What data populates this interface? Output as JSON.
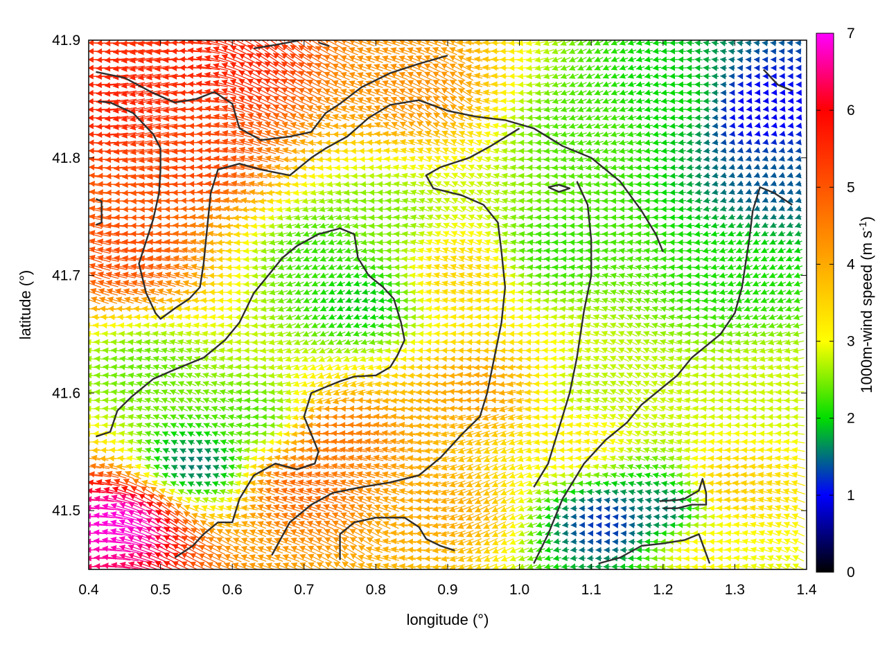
{
  "chart_data": {
    "type": "vector-field",
    "xlabel": "longitude (°)",
    "ylabel": "latitude (°)",
    "colorbar_label": "1000m-wind speed (m s",
    "colorbar_label_sup": "-1",
    "colorbar_label_close": ")",
    "xlim": [
      0.4,
      1.4
    ],
    "ylim": [
      41.45,
      41.9
    ],
    "x_ticks": [
      0.4,
      0.5,
      0.6,
      0.7,
      0.8,
      0.9,
      1.0,
      1.1,
      1.2,
      1.3,
      1.4
    ],
    "x_tick_labels": [
      "0.4",
      "0.5",
      "0.6",
      "0.7",
      "0.8",
      "0.9",
      "1.0",
      "1.1",
      "1.2",
      "1.3",
      "1.4"
    ],
    "y_ticks": [
      41.5,
      41.6,
      41.7,
      41.8,
      41.9
    ],
    "y_tick_labels": [
      "41.5",
      "41.6",
      "41.7",
      "41.8",
      "41.9"
    ],
    "colorbar_range": [
      0,
      7
    ],
    "colorbar_ticks": [
      0,
      1,
      2,
      3,
      4,
      5,
      6,
      7
    ],
    "colorbar_tick_labels": [
      "0",
      "1",
      "2",
      "3",
      "4",
      "5",
      "6",
      "7"
    ],
    "colormap": [
      {
        "v": 0,
        "c": "#000000"
      },
      {
        "v": 1,
        "c": "#0000ff"
      },
      {
        "v": 2,
        "c": "#00dd00"
      },
      {
        "v": 3,
        "c": "#ffff00"
      },
      {
        "v": 4,
        "c": "#ffaa00"
      },
      {
        "v": 5,
        "c": "#ff5500"
      },
      {
        "v": 6,
        "c": "#ff0000"
      },
      {
        "v": 7,
        "c": "#ff00ff"
      }
    ],
    "wind_speed_centers": [
      {
        "lon": 0.45,
        "lat": 41.85,
        "speed": 5.6
      },
      {
        "lon": 0.6,
        "lat": 41.88,
        "speed": 5.6
      },
      {
        "lon": 0.45,
        "lat": 41.72,
        "speed": 5.1
      },
      {
        "lon": 0.55,
        "lat": 41.8,
        "speed": 5.2
      },
      {
        "lon": 0.85,
        "lat": 41.86,
        "speed": 4.3
      },
      {
        "lon": 0.45,
        "lat": 41.49,
        "speed": 6.9
      },
      {
        "lon": 0.48,
        "lat": 41.62,
        "speed": 2.4
      },
      {
        "lon": 0.55,
        "lat": 41.54,
        "speed": 1.5
      },
      {
        "lon": 0.63,
        "lat": 41.58,
        "speed": 2.3
      },
      {
        "lon": 0.75,
        "lat": 41.56,
        "speed": 4.6
      },
      {
        "lon": 0.7,
        "lat": 41.52,
        "speed": 4.8
      },
      {
        "lon": 0.78,
        "lat": 41.68,
        "speed": 1.9
      },
      {
        "lon": 0.73,
        "lat": 41.72,
        "speed": 2.2
      },
      {
        "lon": 0.8,
        "lat": 41.75,
        "speed": 2.5
      },
      {
        "lon": 0.92,
        "lat": 41.7,
        "speed": 3.5
      },
      {
        "lon": 0.95,
        "lat": 41.6,
        "speed": 4.1
      },
      {
        "lon": 0.9,
        "lat": 41.5,
        "speed": 4.0
      },
      {
        "lon": 1.05,
        "lat": 41.72,
        "speed": 2.2
      },
      {
        "lon": 1.1,
        "lat": 41.82,
        "speed": 2.3
      },
      {
        "lon": 1.22,
        "lat": 41.85,
        "speed": 2.0
      },
      {
        "lon": 1.33,
        "lat": 41.84,
        "speed": 0.9
      },
      {
        "lon": 1.35,
        "lat": 41.78,
        "speed": 1.4
      },
      {
        "lon": 1.3,
        "lat": 41.7,
        "speed": 2.1
      },
      {
        "lon": 1.1,
        "lat": 41.6,
        "speed": 2.7
      },
      {
        "lon": 1.08,
        "lat": 41.56,
        "speed": 3.2
      },
      {
        "lon": 1.12,
        "lat": 41.49,
        "speed": 1.2
      },
      {
        "lon": 1.2,
        "lat": 41.5,
        "speed": 1.5
      },
      {
        "lon": 1.3,
        "lat": 41.52,
        "speed": 3.6
      },
      {
        "lon": 1.35,
        "lat": 41.6,
        "speed": 2.8
      },
      {
        "lon": 1.25,
        "lat": 41.47,
        "speed": 3.1
      }
    ],
    "contours": [
      [
        [
          0.41,
          41.873
        ],
        [
          0.45,
          41.868
        ],
        [
          0.49,
          41.855
        ],
        [
          0.52,
          41.847
        ],
        [
          0.55,
          41.85
        ],
        [
          0.575,
          41.856
        ],
        [
          0.6,
          41.846
        ],
        [
          0.61,
          41.825
        ],
        [
          0.64,
          41.815
        ],
        [
          0.68,
          41.818
        ],
        [
          0.71,
          41.822
        ],
        [
          0.73,
          41.838
        ],
        [
          0.75,
          41.846
        ],
        [
          0.78,
          41.86
        ],
        [
          0.82,
          41.872
        ],
        [
          0.86,
          41.88
        ],
        [
          0.9,
          41.887
        ]
      ],
      [
        [
          0.413,
          41.848
        ],
        [
          0.43,
          41.847
        ],
        [
          0.462,
          41.838
        ],
        [
          0.49,
          41.82
        ],
        [
          0.5,
          41.808
        ],
        [
          0.5,
          41.79
        ],
        [
          0.498,
          41.77
        ],
        [
          0.49,
          41.748
        ],
        [
          0.47,
          41.71
        ],
        [
          0.48,
          41.685
        ],
        [
          0.493,
          41.668
        ],
        [
          0.5,
          41.663
        ],
        [
          0.52,
          41.672
        ],
        [
          0.54,
          41.68
        ],
        [
          0.555,
          41.69
        ],
        [
          0.56,
          41.71
        ],
        [
          0.565,
          41.74
        ],
        [
          0.57,
          41.77
        ],
        [
          0.58,
          41.79
        ],
        [
          0.61,
          41.795
        ],
        [
          0.64,
          41.79
        ],
        [
          0.68,
          41.785
        ],
        [
          0.71,
          41.8
        ],
        [
          0.73,
          41.808
        ],
        [
          0.76,
          41.818
        ],
        [
          0.79,
          41.834
        ],
        [
          0.82,
          41.845
        ],
        [
          0.86,
          41.849
        ],
        [
          0.9,
          41.84
        ],
        [
          0.94,
          41.835
        ],
        [
          0.98,
          41.832
        ],
        [
          1.02,
          41.825
        ],
        [
          1.06,
          41.81
        ],
        [
          1.1,
          41.8
        ],
        [
          1.14,
          41.78
        ],
        [
          1.17,
          41.755
        ],
        [
          1.19,
          41.735
        ],
        [
          1.2,
          41.72
        ]
      ],
      [
        [
          0.41,
          41.765
        ],
        [
          0.418,
          41.763
        ],
        [
          0.418,
          41.745
        ],
        [
          0.41,
          41.743
        ]
      ],
      [
        [
          0.41,
          41.563
        ],
        [
          0.43,
          41.567
        ],
        [
          0.44,
          41.585
        ],
        [
          0.46,
          41.597
        ],
        [
          0.49,
          41.612
        ],
        [
          0.52,
          41.62
        ],
        [
          0.56,
          41.63
        ],
        [
          0.59,
          41.645
        ],
        [
          0.61,
          41.66
        ],
        [
          0.63,
          41.685
        ],
        [
          0.65,
          41.7
        ],
        [
          0.67,
          41.715
        ],
        [
          0.69,
          41.725
        ],
        [
          0.72,
          41.735
        ],
        [
          0.75,
          41.74
        ],
        [
          0.77,
          41.735
        ],
        [
          0.775,
          41.715
        ],
        [
          0.79,
          41.7
        ],
        [
          0.81,
          41.69
        ],
        [
          0.825,
          41.68
        ],
        [
          0.835,
          41.66
        ],
        [
          0.84,
          41.645
        ],
        [
          0.83,
          41.632
        ],
        [
          0.82,
          41.622
        ],
        [
          0.8,
          41.615
        ],
        [
          0.77,
          41.614
        ],
        [
          0.75,
          41.61
        ],
        [
          0.73,
          41.605
        ],
        [
          0.71,
          41.6
        ],
        [
          0.7,
          41.58
        ],
        [
          0.71,
          41.565
        ],
        [
          0.72,
          41.55
        ],
        [
          0.715,
          41.54
        ],
        [
          0.69,
          41.535
        ],
        [
          0.66,
          41.54
        ],
        [
          0.63,
          41.53
        ],
        [
          0.61,
          41.51
        ],
        [
          0.6,
          41.49
        ],
        [
          0.58,
          41.49
        ],
        [
          0.56,
          41.48
        ],
        [
          0.545,
          41.47
        ],
        [
          0.52,
          41.46
        ]
      ],
      [
        [
          0.655,
          41.462
        ],
        [
          0.68,
          41.49
        ],
        [
          0.71,
          41.505
        ],
        [
          0.74,
          41.515
        ],
        [
          0.78,
          41.52
        ],
        [
          0.82,
          41.524
        ],
        [
          0.86,
          41.53
        ],
        [
          0.89,
          41.545
        ],
        [
          0.92,
          41.565
        ],
        [
          0.945,
          41.58
        ],
        [
          0.955,
          41.6
        ],
        [
          0.965,
          41.63
        ],
        [
          0.975,
          41.66
        ],
        [
          0.98,
          41.69
        ],
        [
          0.975,
          41.72
        ],
        [
          0.97,
          41.745
        ],
        [
          0.95,
          41.76
        ],
        [
          0.92,
          41.768
        ],
        [
          0.88,
          41.774
        ],
        [
          0.87,
          41.785
        ],
        [
          0.89,
          41.792
        ],
        [
          0.93,
          41.8
        ],
        [
          0.96,
          41.81
        ],
        [
          1.0,
          41.825
        ]
      ],
      [
        [
          1.02,
          41.455
        ],
        [
          1.04,
          41.48
        ],
        [
          1.06,
          41.51
        ],
        [
          1.09,
          41.54
        ],
        [
          1.12,
          41.56
        ],
        [
          1.15,
          41.575
        ],
        [
          1.17,
          41.59
        ],
        [
          1.2,
          41.605
        ],
        [
          1.22,
          41.615
        ],
        [
          1.24,
          41.63
        ],
        [
          1.26,
          41.64
        ],
        [
          1.28,
          41.65
        ],
        [
          1.3,
          41.668
        ],
        [
          1.31,
          41.69
        ],
        [
          1.315,
          41.71
        ],
        [
          1.32,
          41.73
        ],
        [
          1.325,
          41.755
        ],
        [
          1.335,
          41.775
        ],
        [
          1.355,
          41.77
        ],
        [
          1.38,
          41.76
        ]
      ],
      [
        [
          1.02,
          41.52
        ],
        [
          1.04,
          41.54
        ],
        [
          1.05,
          41.56
        ],
        [
          1.07,
          41.6
        ],
        [
          1.08,
          41.63
        ],
        [
          1.09,
          41.67
        ],
        [
          1.1,
          41.7
        ],
        [
          1.1,
          41.73
        ],
        [
          1.095,
          41.76
        ],
        [
          1.08,
          41.78
        ]
      ],
      [
        [
          0.75,
          41.458
        ],
        [
          0.75,
          41.48
        ],
        [
          0.77,
          41.49
        ],
        [
          0.8,
          41.494
        ],
        [
          0.84,
          41.494
        ],
        [
          0.86,
          41.486
        ],
        [
          0.87,
          41.476
        ],
        [
          0.89,
          41.47
        ],
        [
          0.91,
          41.466
        ]
      ],
      [
        [
          1.11,
          41.455
        ],
        [
          1.14,
          41.46
        ],
        [
          1.17,
          41.47
        ],
        [
          1.2,
          41.472
        ],
        [
          1.23,
          41.475
        ],
        [
          1.25,
          41.48
        ],
        [
          1.265,
          41.455
        ]
      ],
      [
        [
          1.195,
          41.508
        ],
        [
          1.22,
          41.509
        ],
        [
          1.23,
          41.51
        ],
        [
          1.25,
          41.517
        ],
        [
          1.255,
          41.527
        ],
        [
          1.26,
          41.515
        ],
        [
          1.26,
          41.505
        ],
        [
          1.24,
          41.505
        ],
        [
          1.22,
          41.502
        ],
        [
          1.2,
          41.502
        ]
      ],
      [
        [
          1.04,
          41.775
        ],
        [
          1.055,
          41.777
        ],
        [
          1.07,
          41.774
        ],
        [
          1.055,
          41.771
        ],
        [
          1.04,
          41.775
        ]
      ],
      [
        [
          0.63,
          41.893
        ],
        [
          0.66,
          41.896
        ],
        [
          0.695,
          41.9
        ]
      ],
      [
        [
          0.72,
          41.898
        ],
        [
          0.735,
          41.895
        ]
      ],
      [
        [
          1.34,
          41.875
        ],
        [
          1.36,
          41.862
        ],
        [
          1.38,
          41.857
        ]
      ]
    ]
  }
}
